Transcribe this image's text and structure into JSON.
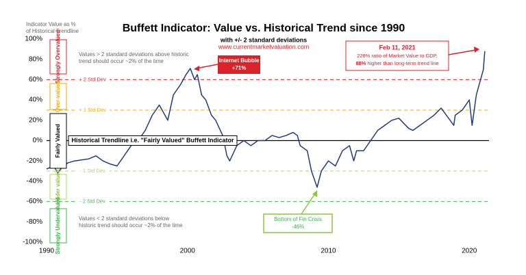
{
  "chart_data": {
    "type": "line",
    "title": "Buffett Indicator: Value vs. Historical Trend since 1990",
    "subtitle": "with +/- 2 standard deviations",
    "source": "www.currentmarketvaluation.com",
    "y_axis_title": [
      "Indicator Value as %",
      "of Historical Trendline"
    ],
    "xlim": [
      1990,
      2021.4
    ],
    "xticks": [
      1990,
      2000,
      2010,
      2020
    ],
    "ylim": [
      -100,
      100
    ],
    "yticks": [
      {
        "value": -100,
        "label": "-100%"
      },
      {
        "value": -80,
        "label": "-80%"
      },
      {
        "value": -60,
        "label": "-60%"
      },
      {
        "value": -40,
        "label": "-40%"
      },
      {
        "value": -20,
        "label": "-20%"
      },
      {
        "value": 0,
        "label": "0%"
      },
      {
        "value": 20,
        "label": "20%"
      },
      {
        "value": 40,
        "label": "40%"
      },
      {
        "value": 60,
        "label": "60%"
      },
      {
        "value": 80,
        "label": "80%"
      },
      {
        "value": 100,
        "label": "100%"
      }
    ],
    "series": [
      {
        "color": "#1f3a7a",
        "x": [
          1990,
          1990.5,
          1990.8,
          1991,
          1991.5,
          1992,
          1993,
          1993.5,
          1994,
          1994.5,
          1995,
          1995.5,
          1996,
          1996.5,
          1997,
          1997.5,
          1998,
          1998.6,
          1999,
          1999.5,
          1999.9,
          2000.2,
          2000.5,
          2000.7,
          2001,
          2001.3,
          2001.7,
          2002,
          2002.5,
          2002.8,
          2003,
          2003.5,
          2004,
          2004.5,
          2005,
          2005.5,
          2006,
          2006.5,
          2007,
          2007.5,
          2007.8,
          2008,
          2008.5,
          2008.8,
          2009.2,
          2009.5,
          2010,
          2010.5,
          2011,
          2011.5,
          2011.8,
          2012,
          2012.5,
          2013,
          2013.5,
          2014,
          2014.5,
          2015,
          2015.7,
          2016,
          2016.5,
          2017,
          2017.5,
          2018,
          2018.9,
          2019,
          2019.5,
          2020,
          2020.2,
          2020.5,
          2021,
          2021.1
        ],
        "values": [
          -28,
          -25,
          -32,
          -28,
          -22,
          -20,
          -18,
          -15,
          -20,
          -23,
          -25,
          -15,
          -5,
          0,
          10,
          25,
          35,
          20,
          45,
          55,
          65,
          71,
          60,
          65,
          45,
          40,
          25,
          20,
          5,
          -15,
          -20,
          -5,
          0,
          -5,
          0,
          0,
          5,
          3,
          5,
          8,
          5,
          -5,
          -10,
          -30,
          -46,
          -30,
          -20,
          -25,
          -10,
          -5,
          -20,
          -10,
          -10,
          0,
          10,
          15,
          20,
          22,
          12,
          10,
          15,
          20,
          25,
          32,
          15,
          25,
          30,
          40,
          15,
          45,
          70,
          88
        ]
      }
    ],
    "reference_lines": [
      {
        "value": 60,
        "label": "+ 2 Std Dev",
        "color": "#d9222a"
      },
      {
        "value": 30,
        "label": "+ 1 Std Dev",
        "color": "#f2a900"
      },
      {
        "value": 0,
        "label": "Historical Trendline i.e. \"Fairly Valued\" Buffett Indicator",
        "color": "#000000"
      },
      {
        "value": -30,
        "label": "- 1 Std Dev",
        "color": "#a6d96a"
      },
      {
        "value": -60,
        "label": "- 2 Std Dev",
        "color": "#3bb54a"
      }
    ],
    "zones": [
      "Strongly Overvalued",
      "Over-valued",
      "Fairly Valued",
      "Under valued",
      "Strongly Undervalued"
    ],
    "notes": {
      "above": [
        "Values > 2 standard deviations above historic",
        "trend should occur ~2% of the time"
      ],
      "below": [
        "Values < 2 standard deviations below",
        "historic trend should occur ~2% of the time"
      ]
    },
    "annotations": {
      "bubble": [
        "Internet Bubble",
        "+71%"
      ],
      "crisis": [
        "Bottom of Fin Crisis",
        "-46%"
      ],
      "latest": {
        "date": "Feb 11, 2021",
        "line1": "228% ratio of Market Value to GDP,",
        "bold": "88%",
        "rest": " higher than long-term trend line"
      }
    }
  }
}
